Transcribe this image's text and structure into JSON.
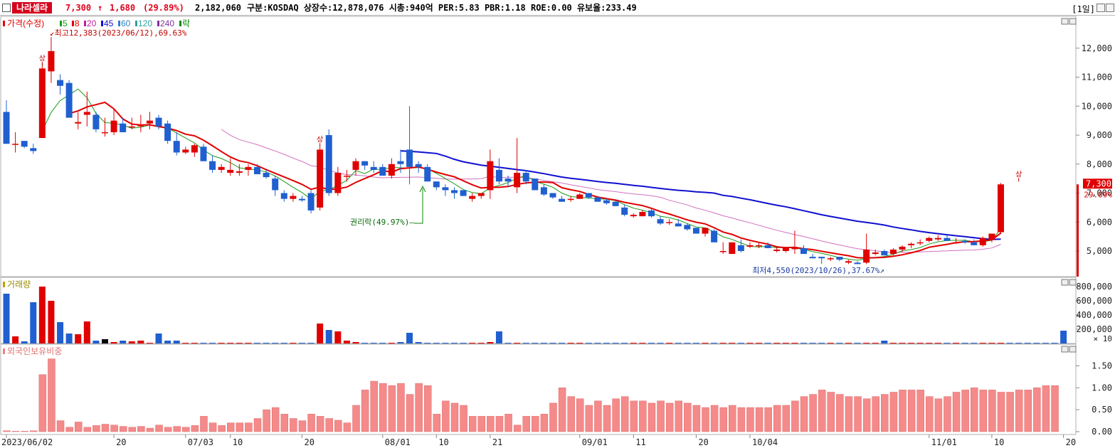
{
  "header": {
    "stock_name": "나라셀라",
    "price": "7,300",
    "arrow": "↑",
    "change": "1,680",
    "change_pct": "(29.89%)",
    "volume": "2,182,060",
    "info": "구분:KOSDAQ 상장수:12,878,076 시총:940억 PER:5.83 PBR:1.18 ROE:0.00 유보율:233.49",
    "period": "[1일]"
  },
  "legend": {
    "price": "가격(수정)",
    "ma": [
      {
        "label": "5",
        "color": "#1a9a1a"
      },
      {
        "label": "8",
        "color": "#e00000"
      },
      {
        "label": "20",
        "color": "#c020a0"
      },
      {
        "label": "45",
        "color": "#1010d0"
      },
      {
        "label": "60",
        "color": "#3080c0"
      },
      {
        "label": "120",
        "color": "#30a0a0"
      },
      {
        "label": "240",
        "color": "#8030a0"
      },
      {
        "label": "락",
        "color": "#0a8a0a"
      }
    ],
    "volume": "거래량",
    "foreign": "외국인보유비중"
  },
  "annotations": {
    "high": "최고12,383(2023/06/12),69.63%",
    "low": "최저4,550(2023/10/26),37.67%",
    "rights": "권리락(49.97%)",
    "limit_up": "상",
    "current_price": "7,300",
    "current_pct": "29.89%",
    "volume_unit": "× 10"
  },
  "axes": {
    "price_ticks": [
      "12,000",
      "11,000",
      "10,000",
      "9,000",
      "8,000",
      "7,000",
      "6,000",
      "5,000"
    ],
    "volume_ticks": [
      "800,000",
      "600,000",
      "400,000",
      "200,000"
    ],
    "foreign_ticks": [
      "1.50",
      "1.00",
      "0.50",
      "0.00"
    ],
    "x_ticks": [
      {
        "label": "2023/06/02",
        "i": 0
      },
      {
        "label": "20",
        "i": 12
      },
      {
        "label": "07/03",
        "i": 20
      },
      {
        "label": "10",
        "i": 25
      },
      {
        "label": "20",
        "i": 33
      },
      {
        "label": "08/01",
        "i": 42
      },
      {
        "label": "10",
        "i": 48
      },
      {
        "label": "21",
        "i": 54
      },
      {
        "label": "09/01",
        "i": 64
      },
      {
        "label": "11",
        "i": 70
      },
      {
        "label": "20",
        "i": 77
      },
      {
        "label": "10/04",
        "i": 83
      },
      {
        "label": "11/01",
        "i": 103
      },
      {
        "label": "10",
        "i": 110
      },
      {
        "label": "20",
        "i": 118
      }
    ]
  },
  "chart_data": {
    "type": "candlestick",
    "ohlc": [
      [
        9800,
        10200,
        8700,
        8700
      ],
      [
        8700,
        9100,
        8400,
        8700
      ],
      [
        8800,
        8800,
        8550,
        8600
      ],
      [
        8550,
        8700,
        8350,
        8450
      ],
      [
        8900,
        11500,
        8900,
        11300
      ],
      [
        11200,
        12383,
        10800,
        11900
      ],
      [
        10900,
        11100,
        10400,
        10700
      ],
      [
        10800,
        10900,
        9600,
        9600
      ],
      [
        9400,
        9800,
        9200,
        9450
      ],
      [
        9700,
        10500,
        9300,
        9800
      ],
      [
        9700,
        9800,
        9100,
        9200
      ],
      [
        9100,
        9600,
        8950,
        9100
      ],
      [
        9100,
        9900,
        9000,
        9500
      ],
      [
        9400,
        9600,
        9100,
        9100
      ],
      [
        9300,
        9600,
        9200,
        9300
      ],
      [
        9300,
        9700,
        9100,
        9350
      ],
      [
        9400,
        9800,
        9200,
        9500
      ],
      [
        9600,
        9700,
        9200,
        9300
      ],
      [
        9400,
        9500,
        8700,
        8800
      ],
      [
        8800,
        9100,
        8300,
        8400
      ],
      [
        8400,
        8600,
        8350,
        8500
      ],
      [
        8400,
        8700,
        8250,
        8650
      ],
      [
        8600,
        8700,
        8100,
        8100
      ],
      [
        8100,
        8300,
        7700,
        7800
      ],
      [
        7800,
        8000,
        7700,
        7900
      ],
      [
        7700,
        8200,
        7600,
        7800
      ],
      [
        7700,
        8000,
        7600,
        7750
      ],
      [
        7800,
        8000,
        7600,
        7900
      ],
      [
        7900,
        8000,
        7650,
        7650
      ],
      [
        7700,
        7800,
        7500,
        7550
      ],
      [
        7500,
        7600,
        6900,
        7100
      ],
      [
        7000,
        7100,
        6700,
        6800
      ],
      [
        6800,
        7000,
        6700,
        6900
      ],
      [
        6800,
        6900,
        6700,
        6750
      ],
      [
        7000,
        7100,
        6300,
        6400
      ],
      [
        6500,
        8600,
        6400,
        8500
      ],
      [
        9000,
        9200,
        6900,
        7000
      ],
      [
        7000,
        7900,
        6900,
        7700
      ],
      [
        7600,
        7800,
        7400,
        7600
      ],
      [
        7800,
        8200,
        7600,
        8100
      ],
      [
        8100,
        8100,
        7800,
        7950
      ],
      [
        7900,
        8100,
        7700,
        7800
      ],
      [
        7900,
        8000,
        7600,
        7600
      ],
      [
        7600,
        8200,
        7500,
        8000
      ],
      [
        8100,
        8500,
        7700,
        8000
      ],
      [
        8500,
        10000,
        7300,
        7900
      ],
      [
        8000,
        8100,
        7700,
        7900
      ],
      [
        7900,
        8000,
        7400,
        7400
      ],
      [
        7400,
        7400,
        7100,
        7200
      ],
      [
        7200,
        7300,
        6900,
        7100
      ],
      [
        7100,
        7200,
        6800,
        7000
      ],
      [
        7100,
        7100,
        6900,
        6900
      ],
      [
        6800,
        7000,
        6700,
        6900
      ],
      [
        6900,
        7000,
        6800,
        7000
      ],
      [
        7100,
        8500,
        6800,
        8100
      ],
      [
        7800,
        8200,
        7300,
        7400
      ],
      [
        7500,
        7600,
        7200,
        7400
      ],
      [
        7200,
        8900,
        7000,
        7700
      ],
      [
        7700,
        7800,
        7300,
        7400
      ],
      [
        7500,
        7500,
        7100,
        7100
      ],
      [
        7200,
        7300,
        6900,
        6950
      ],
      [
        7000,
        7000,
        6800,
        6850
      ],
      [
        6800,
        6900,
        6700,
        6700
      ],
      [
        6800,
        6900,
        6700,
        6800
      ],
      [
        6800,
        7000,
        6800,
        6950
      ],
      [
        7000,
        7000,
        6800,
        6850
      ],
      [
        6850,
        6900,
        6700,
        6700
      ],
      [
        6750,
        6800,
        6600,
        6650
      ],
      [
        6700,
        6750,
        6550,
        6550
      ],
      [
        6500,
        6600,
        6200,
        6250
      ],
      [
        6200,
        6300,
        6150,
        6250
      ],
      [
        6200,
        6400,
        6200,
        6350
      ],
      [
        6400,
        6450,
        6150,
        6200
      ],
      [
        6100,
        6200,
        5900,
        5950
      ],
      [
        6000,
        6100,
        5900,
        6000
      ],
      [
        5950,
        6100,
        5850,
        5850
      ],
      [
        5900,
        5950,
        5700,
        5750
      ],
      [
        5800,
        5800,
        5600,
        5600
      ],
      [
        5600,
        5800,
        5500,
        5800
      ],
      [
        5700,
        5750,
        5300,
        5300
      ],
      [
        5000,
        5300,
        4900,
        5000
      ],
      [
        4900,
        5300,
        4900,
        5300
      ],
      [
        5200,
        5400,
        4950,
        5000
      ],
      [
        5150,
        5300,
        5100,
        5200
      ],
      [
        5200,
        5300,
        5100,
        5200
      ],
      [
        5200,
        5300,
        5100,
        5100
      ],
      [
        5000,
        5150,
        4950,
        5050
      ],
      [
        5000,
        5100,
        4950,
        5100
      ],
      [
        5100,
        5700,
        4900,
        5100
      ],
      [
        5100,
        5200,
        4900,
        4900
      ],
      [
        4800,
        4900,
        4750,
        4750
      ],
      [
        4800,
        4800,
        4550,
        4750
      ],
      [
        4750,
        4800,
        4650,
        4750
      ],
      [
        4800,
        4800,
        4650,
        4700
      ],
      [
        4600,
        4700,
        4550,
        4650
      ],
      [
        4600,
        4650,
        4550,
        4550
      ],
      [
        4600,
        5600,
        4550,
        5050
      ],
      [
        4900,
        5050,
        4850,
        4950
      ],
      [
        5000,
        5050,
        4850,
        4850
      ],
      [
        4900,
        5100,
        4850,
        5050
      ],
      [
        5050,
        5200,
        4950,
        5150
      ],
      [
        5200,
        5300,
        5100,
        5250
      ],
      [
        5300,
        5400,
        5200,
        5300
      ],
      [
        5350,
        5500,
        5300,
        5450
      ],
      [
        5400,
        5550,
        5350,
        5450
      ],
      [
        5450,
        5550,
        5350,
        5350
      ],
      [
        5300,
        5450,
        5250,
        5300
      ],
      [
        5350,
        5400,
        5250,
        5300
      ],
      [
        5300,
        5400,
        5200,
        5200
      ],
      [
        5200,
        5500,
        5150,
        5450
      ],
      [
        5400,
        5600,
        5300,
        5600
      ],
      [
        5650,
        7350,
        5600,
        7300
      ]
    ],
    "ma5_start": 4,
    "ma8_start": 7,
    "ma45_start": 44,
    "ma60_start": 59,
    "volume": [
      70,
      10,
      3,
      58,
      80,
      60,
      30,
      14,
      13,
      31,
      4,
      6,
      2,
      4,
      3,
      4,
      1,
      14,
      4,
      4,
      1,
      1,
      1,
      1,
      1,
      1,
      1,
      1,
      1,
      1,
      1,
      1,
      1,
      1,
      1,
      28,
      19,
      17,
      4,
      2,
      1,
      1,
      1,
      1,
      2,
      15,
      2,
      1,
      1,
      1,
      1,
      1,
      1,
      1,
      2,
      17,
      1,
      1,
      1,
      1,
      1,
      1,
      1,
      1,
      1,
      1,
      1,
      1,
      1,
      1,
      1,
      1,
      1,
      1,
      1,
      1,
      1,
      1,
      1,
      1,
      1,
      1,
      1,
      1,
      1,
      1,
      1,
      1,
      1,
      1,
      1,
      1,
      1,
      1,
      1,
      1,
      1,
      1,
      4,
      1,
      1,
      1,
      1,
      1,
      1,
      1,
      1,
      1,
      1,
      1,
      1,
      1,
      1,
      1,
      1,
      1,
      1,
      1,
      18
    ],
    "foreign_ratio": [
      0.02,
      0.01,
      0.01,
      0.02,
      1.3,
      1.66,
      0.25,
      0.1,
      0.22,
      0.1,
      0.14,
      0.17,
      0.15,
      0.12,
      0.1,
      0.12,
      0.08,
      0.15,
      0.1,
      0.12,
      0.1,
      0.14,
      0.35,
      0.2,
      0.14,
      0.2,
      0.2,
      0.2,
      0.3,
      0.5,
      0.55,
      0.4,
      0.3,
      0.25,
      0.4,
      0.35,
      0.3,
      0.26,
      0.2,
      0.6,
      0.95,
      1.15,
      1.1,
      1.05,
      1.1,
      0.85,
      1.1,
      1.05,
      0.4,
      0.7,
      0.65,
      0.6,
      0.35,
      0.35,
      0.35,
      0.35,
      0.4,
      0.15,
      0.35,
      0.35,
      0.4,
      0.65,
      1.0,
      0.8,
      0.75,
      0.6,
      0.7,
      0.6,
      0.75,
      0.8,
      0.7,
      0.7,
      0.65,
      0.7,
      0.65,
      0.7,
      0.65,
      0.6,
      0.55,
      0.6,
      0.55,
      0.6,
      0.55,
      0.55,
      0.55,
      0.55,
      0.6,
      0.6,
      0.7,
      0.8,
      0.85,
      0.95,
      0.9,
      0.85,
      0.8,
      0.8,
      0.75,
      0.8,
      0.85,
      0.9,
      0.95,
      0.95,
      0.95,
      0.8,
      0.75,
      0.8,
      0.9,
      0.95,
      1.0,
      0.95,
      0.95,
      0.9,
      0.9,
      0.95,
      0.95,
      1.0,
      1.05,
      1.05
    ]
  }
}
